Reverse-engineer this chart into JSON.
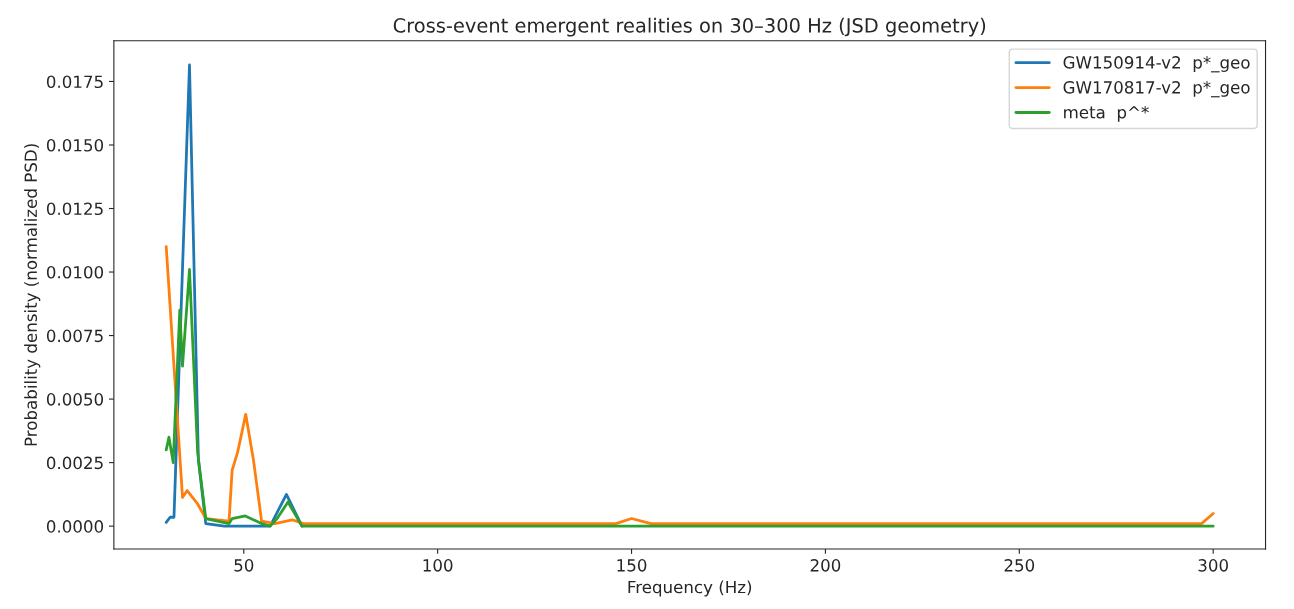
{
  "chart_data": {
    "type": "line",
    "title": "Cross-event emergent realities on 30–300 Hz (JSD geometry)",
    "xlabel": "Frequency (Hz)",
    "ylabel": "Probability density (normalized PSD)",
    "xlim": [
      16.5,
      313.5
    ],
    "xticks": [
      50,
      100,
      150,
      200,
      250,
      300
    ],
    "ylim": [
      -0.0009,
      0.0191
    ],
    "yticks": [
      {
        "value": 0,
        "label": "0.0000"
      },
      {
        "value": 0.0025,
        "label": "0.0025"
      },
      {
        "value": 0.005,
        "label": "0.0050"
      },
      {
        "value": 0.0075,
        "label": "0.0075"
      },
      {
        "value": 0.01,
        "label": "0.0100"
      },
      {
        "value": 0.0125,
        "label": "0.0125"
      },
      {
        "value": 0.015,
        "label": "0.0150"
      },
      {
        "value": 0.0175,
        "label": "0.0175"
      }
    ],
    "grid": false,
    "legend": "top right",
    "marker": "none",
    "line_style": "solid",
    "series": [
      {
        "name": "GW150914-v2  p*_geo",
        "color": "#1f77b4",
        "x": [
          30,
          31,
          32,
          36,
          38.3,
          40.2,
          45,
          56.8,
          61,
          65
        ],
        "values": [
          0.00015,
          0.00035,
          0.00035,
          0.01815,
          0.0026,
          0.0001,
          0.0,
          0.0,
          0.00125,
          0.0
        ]
      },
      {
        "name": "GW170817-v2  p*_geo",
        "color": "#ff7f0e",
        "x": [
          30,
          34.2,
          35.4,
          38,
          40.2,
          46.2,
          47,
          48.4,
          50.5,
          52.5,
          54.6,
          58,
          62.5,
          65.4,
          80,
          100,
          120,
          146,
          150,
          155,
          180,
          200,
          230,
          255,
          262,
          270,
          275,
          290,
          297,
          300
        ],
        "values": [
          0.011,
          0.00113,
          0.0014,
          0.0009,
          0.0003,
          0.0002,
          0.0022,
          0.0029,
          0.0044,
          0.0026,
          0.0002,
          0.0001,
          0.00025,
          0.0001,
          0.0001,
          0.0001,
          0.0001,
          0.0001,
          0.0003,
          0.0001,
          0.0001,
          0.0001,
          0.0001,
          0.0001,
          0.0001,
          0.0001,
          0.0001,
          0.0001,
          0.0001,
          0.0005
        ]
      },
      {
        "name": "meta  p^*",
        "color": "#2ca02c",
        "x": [
          30,
          30.7,
          31.8,
          33.5,
          34.2,
          36,
          38.1,
          40.2,
          46.2,
          47,
          50.4,
          54.6,
          56.8,
          58.6,
          61.4,
          65,
          100,
          150,
          200,
          250,
          300
        ],
        "values": [
          0.003,
          0.0035,
          0.0025,
          0.0085,
          0.0063,
          0.0101,
          0.0029,
          0.0003,
          0.0001,
          0.0003,
          0.0004,
          0.0001,
          0.0,
          0.0003,
          0.00095,
          0.0,
          0.0,
          0.0,
          0.0,
          0.0,
          0.0
        ]
      }
    ]
  }
}
